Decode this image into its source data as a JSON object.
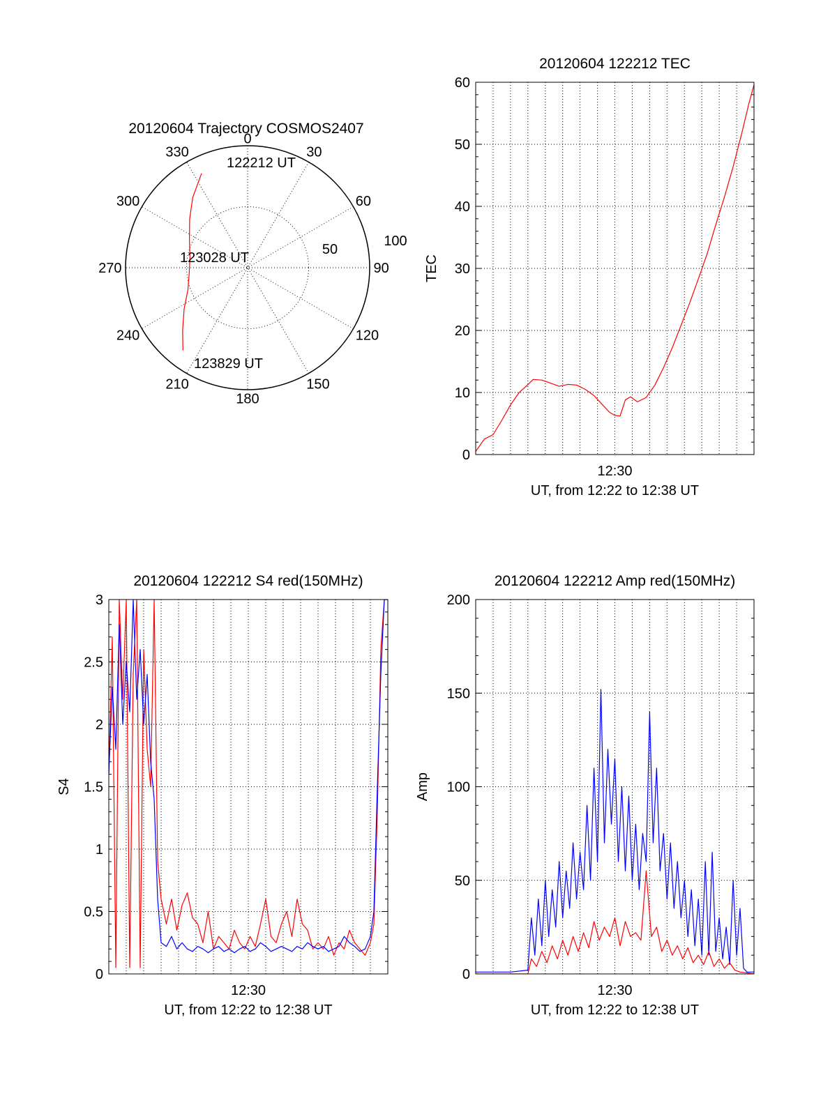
{
  "colors": {
    "red": "#ff0000",
    "blue": "#0000ff",
    "axis": "#000000",
    "background": "#ffffff"
  },
  "chart_data": [
    {
      "id": "trajectory",
      "type": "polar",
      "title": "20120604 Trajectory COSMOS2407",
      "azimuth_labels": [
        "0",
        "30",
        "60",
        "90",
        "120",
        "150",
        "180",
        "210",
        "240",
        "270",
        "300",
        "330"
      ],
      "azimuth_values": [
        0,
        30,
        60,
        90,
        120,
        150,
        180,
        210,
        240,
        270,
        300,
        330
      ],
      "radial_labels": [
        "50",
        "100"
      ],
      "radial_values": [
        50,
        100
      ],
      "radial_max": 100,
      "track": {
        "color": "#ff0000",
        "points": [
          {
            "az": 334,
            "r": 86
          },
          {
            "az": 322,
            "r": 73
          },
          {
            "az": 310,
            "r": 62
          },
          {
            "az": 296,
            "r": 53
          },
          {
            "az": 280,
            "r": 48
          },
          {
            "az": 265,
            "r": 48
          },
          {
            "az": 250,
            "r": 52
          },
          {
            "az": 237,
            "r": 62
          },
          {
            "az": 226,
            "r": 74
          },
          {
            "az": 218,
            "r": 86
          }
        ]
      },
      "annotations": [
        "122212 UT",
        "123028 UT",
        "123829 UT"
      ]
    },
    {
      "id": "tec",
      "type": "line",
      "title": "20120604 122212 TEC",
      "xlabel": "UT, from 12:22 to 12:38 UT",
      "ylabel": "TEC",
      "xlim": [
        0,
        16
      ],
      "ylim": [
        0,
        60
      ],
      "yticks": [
        0,
        10,
        20,
        30,
        40,
        50,
        60
      ],
      "xtick_labels": [
        "12:30"
      ],
      "xtick_positions": [
        8
      ],
      "series": [
        {
          "color": "#ff0000",
          "x": [
            0,
            0.5,
            1.0,
            1.5,
            2.0,
            2.5,
            2.9,
            3.3,
            3.8,
            4.3,
            4.8,
            5.3,
            5.8,
            6.3,
            6.8,
            7.3,
            7.7,
            8.0,
            8.3,
            8.6,
            8.9,
            9.3,
            9.8,
            10.3,
            10.8,
            11.3,
            11.8,
            12.3,
            12.8,
            13.3,
            13.8,
            14.3,
            14.8,
            15.3,
            15.7,
            16.0
          ],
          "y": [
            0.5,
            2.5,
            3.2,
            5.5,
            8.0,
            10.0,
            11.0,
            12.1,
            12.0,
            11.5,
            11.0,
            11.3,
            11.2,
            10.5,
            9.5,
            8.0,
            6.8,
            6.3,
            6.2,
            8.8,
            9.3,
            8.5,
            9.2,
            11.2,
            14.0,
            17.2,
            20.8,
            24.4,
            28.3,
            32.3,
            37.0,
            41.5,
            46.4,
            51.8,
            56.5,
            59.6
          ]
        }
      ]
    },
    {
      "id": "s4",
      "type": "line",
      "title": "20120604 122212 S4 red(150MHz)",
      "xlabel": "UT, from 12:22 to 12:38 UT",
      "ylabel": "S4",
      "xlim": [
        0,
        16
      ],
      "ylim": [
        0,
        3
      ],
      "yticks": [
        0,
        0.5,
        1,
        1.5,
        2,
        2.5,
        3
      ],
      "ytick_labels": [
        "0",
        "0.5",
        "1",
        "1.5",
        "2",
        "2.5",
        "3"
      ],
      "xtick_labels": [
        "12:30"
      ],
      "xtick_positions": [
        8
      ],
      "series": [
        {
          "color": "#ff0000",
          "x": [
            0,
            0.2,
            0.4,
            0.6,
            0.8,
            1.0,
            1.2,
            1.4,
            1.6,
            1.8,
            2.0,
            2.2,
            2.4,
            2.6,
            2.8,
            3.0,
            3.3,
            3.6,
            3.9,
            4.2,
            4.5,
            4.8,
            5.1,
            5.4,
            5.7,
            6.0,
            6.3,
            6.6,
            6.9,
            7.2,
            7.5,
            7.8,
            8.1,
            8.4,
            8.7,
            9.0,
            9.3,
            9.6,
            9.9,
            10.2,
            10.5,
            10.8,
            11.1,
            11.4,
            11.7,
            12.0,
            12.3,
            12.6,
            12.9,
            13.2,
            13.5,
            13.8,
            14.1,
            14.4,
            14.7,
            15.0,
            15.2,
            15.4,
            15.6,
            15.8,
            16.0
          ],
          "y": [
            1.6,
            2.7,
            0.05,
            3.0,
            2.2,
            3.0,
            0.05,
            2.4,
            3.0,
            0.05,
            2.6,
            1.8,
            1.5,
            3.0,
            0.9,
            0.6,
            0.4,
            0.6,
            0.35,
            0.55,
            0.65,
            0.45,
            0.4,
            0.25,
            0.5,
            0.2,
            0.3,
            0.25,
            0.2,
            0.35,
            0.25,
            0.2,
            0.3,
            0.22,
            0.4,
            0.6,
            0.3,
            0.25,
            0.4,
            0.5,
            0.3,
            0.6,
            0.4,
            0.35,
            0.2,
            0.25,
            0.2,
            0.3,
            0.15,
            0.25,
            0.2,
            0.35,
            0.25,
            0.2,
            0.15,
            0.25,
            0.4,
            1.3,
            2.6,
            3.0,
            3.0
          ]
        },
        {
          "color": "#0000ff",
          "x": [
            0,
            0.2,
            0.4,
            0.6,
            0.8,
            1.0,
            1.2,
            1.4,
            1.6,
            1.8,
            2.0,
            2.2,
            2.4,
            2.6,
            2.8,
            3.0,
            3.3,
            3.6,
            3.9,
            4.2,
            4.5,
            4.8,
            5.1,
            5.4,
            5.7,
            6.0,
            6.3,
            6.6,
            6.9,
            7.2,
            7.5,
            7.8,
            8.1,
            8.4,
            8.7,
            9.0,
            9.3,
            9.6,
            9.9,
            10.2,
            10.5,
            10.8,
            11.1,
            11.4,
            11.7,
            12.0,
            12.3,
            12.6,
            12.9,
            13.2,
            13.5,
            13.8,
            14.1,
            14.4,
            14.7,
            15.0,
            15.2,
            15.4,
            15.6,
            15.8,
            16.0
          ],
          "y": [
            1.6,
            2.3,
            1.8,
            2.8,
            2.0,
            2.5,
            2.1,
            3.0,
            2.2,
            2.6,
            2.0,
            2.4,
            1.7,
            1.4,
            0.6,
            0.25,
            0.22,
            0.3,
            0.2,
            0.25,
            0.2,
            0.18,
            0.22,
            0.2,
            0.17,
            0.2,
            0.22,
            0.18,
            0.2,
            0.17,
            0.2,
            0.22,
            0.18,
            0.2,
            0.25,
            0.22,
            0.18,
            0.2,
            0.22,
            0.2,
            0.18,
            0.22,
            0.2,
            0.25,
            0.22,
            0.2,
            0.22,
            0.18,
            0.2,
            0.22,
            0.3,
            0.25,
            0.22,
            0.18,
            0.2,
            0.3,
            0.5,
            1.5,
            2.4,
            3.0,
            3.0
          ]
        }
      ]
    },
    {
      "id": "amp",
      "type": "line",
      "title": "20120604 122212 Amp red(150MHz)",
      "xlabel": "UT, from 12:22 to 12:38 UT",
      "ylabel": "Amp",
      "xlim": [
        0,
        16
      ],
      "ylim": [
        0,
        200
      ],
      "yticks": [
        0,
        50,
        100,
        150,
        200
      ],
      "xtick_labels": [
        "12:30"
      ],
      "xtick_positions": [
        8
      ],
      "series": [
        {
          "color": "#0000ff",
          "x": [
            0,
            1.0,
            2.0,
            3.0,
            3.2,
            3.4,
            3.6,
            3.8,
            4.0,
            4.2,
            4.4,
            4.6,
            4.8,
            5.0,
            5.2,
            5.4,
            5.6,
            5.8,
            6.0,
            6.2,
            6.4,
            6.6,
            6.8,
            7.0,
            7.2,
            7.4,
            7.6,
            7.8,
            8.0,
            8.2,
            8.4,
            8.6,
            8.8,
            9.0,
            9.2,
            9.4,
            9.6,
            9.8,
            10.0,
            10.2,
            10.4,
            10.6,
            10.8,
            11.0,
            11.2,
            11.4,
            11.6,
            11.8,
            12.0,
            12.2,
            12.4,
            12.6,
            12.8,
            13.0,
            13.2,
            13.4,
            13.6,
            13.8,
            14.0,
            14.2,
            14.4,
            14.6,
            14.8,
            15.0,
            15.2,
            15.4,
            15.6,
            16.0
          ],
          "y": [
            1,
            1,
            1,
            2,
            30,
            10,
            40,
            15,
            50,
            20,
            45,
            25,
            60,
            30,
            55,
            35,
            70,
            40,
            65,
            45,
            90,
            50,
            110,
            60,
            152,
            70,
            120,
            80,
            115,
            60,
            100,
            55,
            95,
            50,
            80,
            45,
            75,
            60,
            140,
            70,
            110,
            55,
            75,
            40,
            70,
            35,
            60,
            30,
            50,
            20,
            45,
            15,
            40,
            10,
            60,
            10,
            65,
            12,
            30,
            8,
            25,
            5,
            50,
            10,
            35,
            3,
            1,
            1
          ]
        },
        {
          "color": "#ff0000",
          "x": [
            0,
            3.0,
            3.2,
            3.5,
            3.8,
            4.1,
            4.4,
            4.7,
            5.0,
            5.3,
            5.6,
            5.9,
            6.2,
            6.5,
            6.8,
            7.1,
            7.4,
            7.7,
            8.0,
            8.3,
            8.6,
            8.9,
            9.2,
            9.5,
            9.8,
            10.1,
            10.4,
            10.7,
            11.0,
            11.3,
            11.6,
            11.9,
            12.2,
            12.5,
            12.8,
            13.1,
            13.4,
            13.7,
            14.0,
            14.3,
            14.6,
            14.9,
            15.2,
            16.0
          ],
          "y": [
            0,
            0,
            8,
            4,
            12,
            6,
            15,
            8,
            18,
            10,
            20,
            12,
            22,
            14,
            28,
            18,
            25,
            20,
            30,
            15,
            28,
            20,
            22,
            18,
            55,
            20,
            25,
            12,
            18,
            10,
            15,
            8,
            14,
            6,
            10,
            5,
            12,
            4,
            8,
            3,
            6,
            2,
            1,
            0
          ]
        }
      ]
    }
  ]
}
